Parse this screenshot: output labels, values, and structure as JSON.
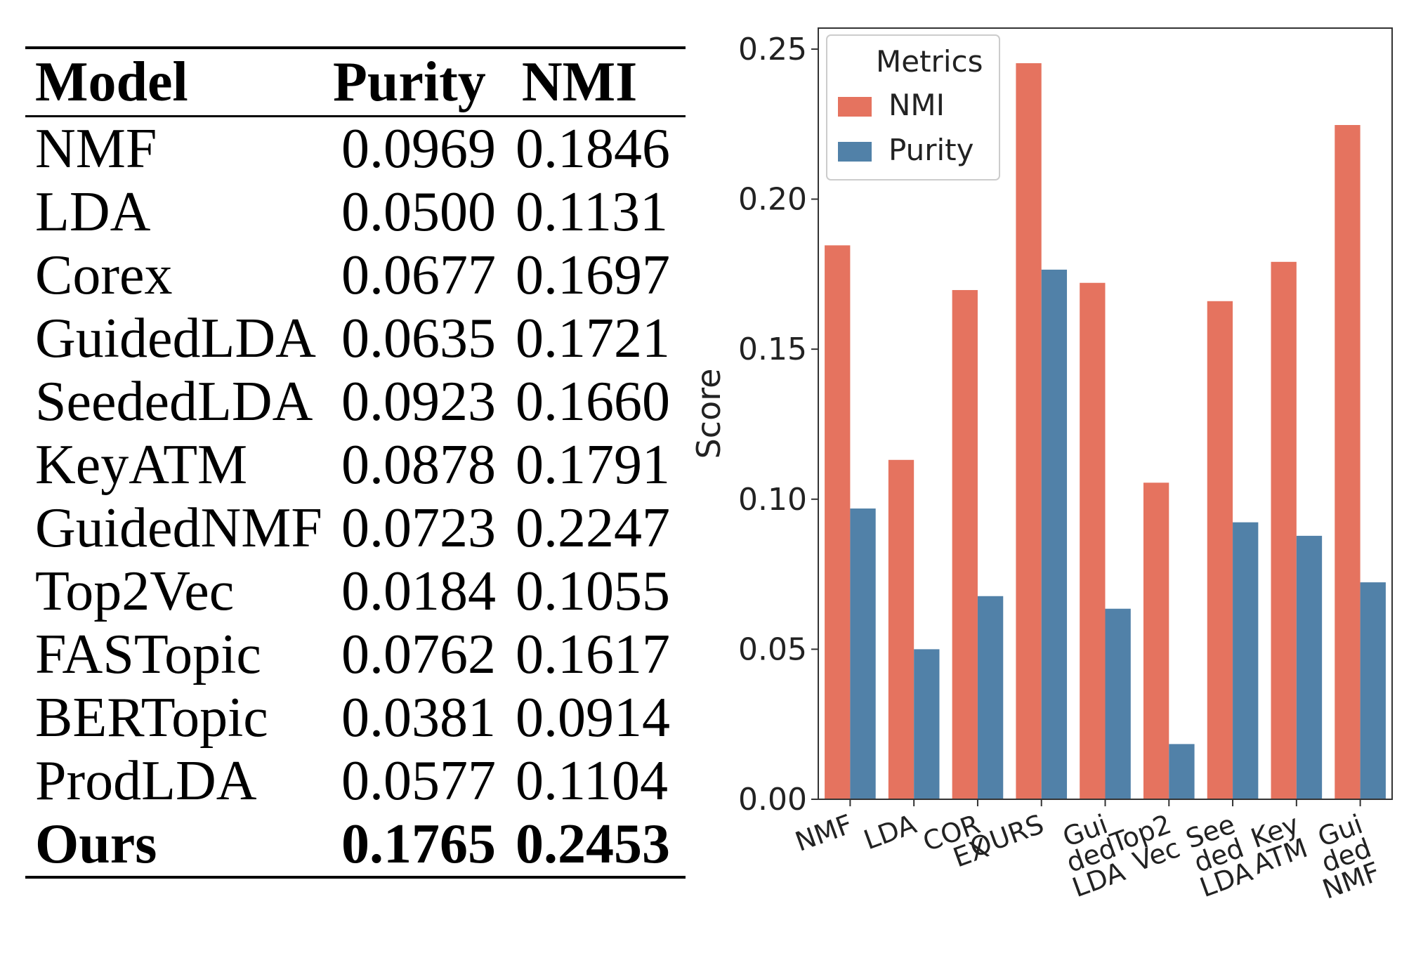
{
  "table": {
    "headers": [
      "Model",
      "Purity",
      "NMI"
    ],
    "rows": [
      {
        "model": "NMF",
        "purity": "0.0969",
        "nmi": "0.1846"
      },
      {
        "model": "LDA",
        "purity": "0.0500",
        "nmi": "0.1131"
      },
      {
        "model": "Corex",
        "purity": "0.0677",
        "nmi": "0.1697"
      },
      {
        "model": "GuidedLDA",
        "purity": "0.0635",
        "nmi": "0.1721"
      },
      {
        "model": "SeededLDA",
        "purity": "0.0923",
        "nmi": "0.1660"
      },
      {
        "model": "KeyATM",
        "purity": "0.0878",
        "nmi": "0.1791"
      },
      {
        "model": "GuidedNMF",
        "purity": "0.0723",
        "nmi": "0.2247"
      },
      {
        "model": "Top2Vec",
        "purity": "0.0184",
        "nmi": "0.1055"
      },
      {
        "model": "FASTopic",
        "purity": "0.0762",
        "nmi": "0.1617"
      },
      {
        "model": "BERTopic",
        "purity": "0.0381",
        "nmi": "0.0914"
      },
      {
        "model": "ProdLDA",
        "purity": "0.0577",
        "nmi": "0.1104"
      }
    ],
    "highlight_row": {
      "model": "Ours",
      "purity": "0.1765",
      "nmi": "0.2453"
    }
  },
  "chart_data": {
    "type": "bar",
    "title": "",
    "xlabel": "",
    "ylabel": "Score",
    "ylim": [
      0,
      0.257
    ],
    "yticks": [
      "0.00",
      "0.05",
      "0.10",
      "0.15",
      "0.20",
      "0.25"
    ],
    "categories": [
      [
        "NMF"
      ],
      [
        "LDA"
      ],
      [
        "COR",
        "EX"
      ],
      [
        "OURS"
      ],
      [
        "Gui",
        "ded",
        "LDA"
      ],
      [
        "Top2",
        "Vec"
      ],
      [
        "See",
        "ded",
        "LDA"
      ],
      [
        "Key",
        "ATM"
      ],
      [
        "Gui",
        "ded",
        "NMF"
      ]
    ],
    "series": [
      {
        "name": "NMI",
        "color": "#e5735f",
        "values": [
          0.1846,
          0.1131,
          0.1697,
          0.2453,
          0.1721,
          0.1055,
          0.166,
          0.1791,
          0.2247
        ]
      },
      {
        "name": "Purity",
        "color": "#5181a8",
        "values": [
          0.0969,
          0.05,
          0.0677,
          0.1765,
          0.0635,
          0.0184,
          0.0923,
          0.0878,
          0.0723
        ]
      }
    ],
    "legend": {
      "title": "Metrics",
      "position": "top-left"
    },
    "grid": false
  }
}
